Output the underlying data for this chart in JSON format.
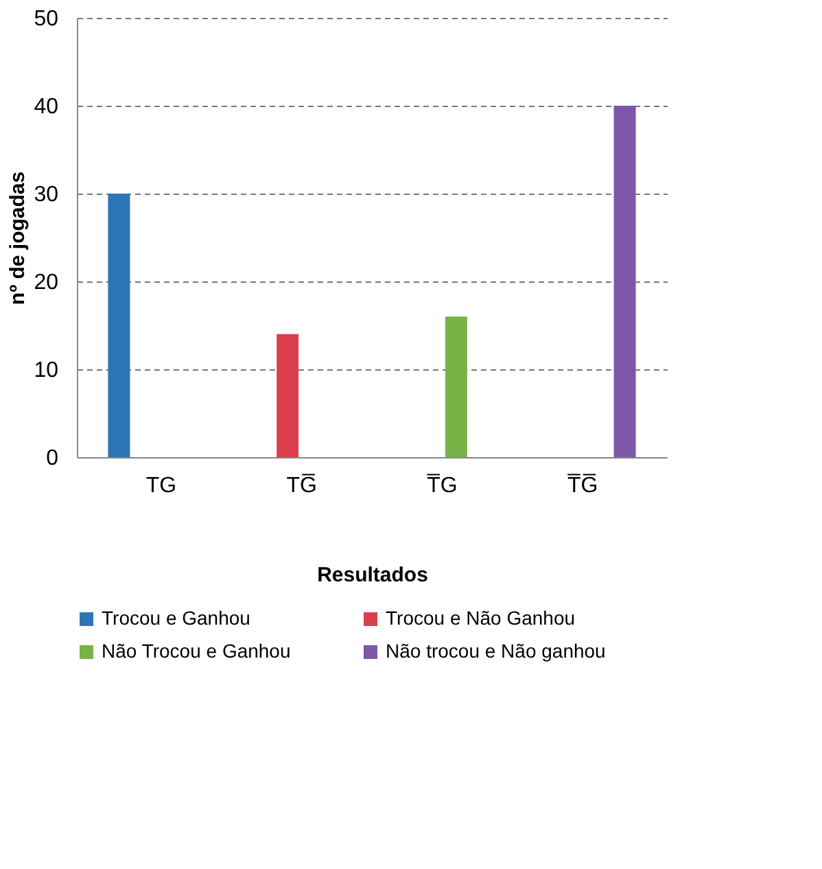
{
  "chart_data": {
    "type": "bar",
    "xlabel": "Resultados",
    "ylabel": "nº de jogadas",
    "categories": [
      "TG",
      "TG̅",
      "T̅G",
      "T̅G̅"
    ],
    "series": [
      {
        "name": "Trocou e Ganhou",
        "color": "#2e75b6",
        "values": [
          30,
          null,
          null,
          null
        ]
      },
      {
        "name": "Trocou e Não Ganhou",
        "color": "#d9404b",
        "values": [
          null,
          14,
          null,
          null
        ]
      },
      {
        "name": "Não Trocou e Ganhou",
        "color": "#77b347",
        "values": [
          null,
          null,
          16,
          null
        ]
      },
      {
        "name": "Não trocou e Não ganhou",
        "color": "#7e57a8",
        "values": [
          null,
          null,
          null,
          40
        ]
      }
    ],
    "ylim": [
      0,
      50
    ],
    "yticks": [
      0,
      10,
      20,
      30,
      40,
      50
    ],
    "grid": "y",
    "legend": "bottom"
  }
}
